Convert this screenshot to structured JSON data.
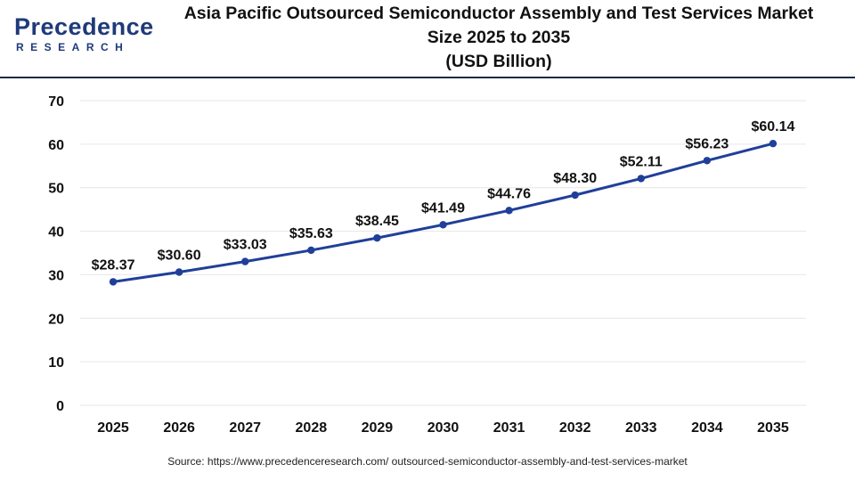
{
  "brand": {
    "logo_word": "Precedence",
    "logo_sub": "RESEARCH"
  },
  "header": {
    "title_line1": "Asia Pacific Outsourced Semiconductor Assembly and Test Services Market",
    "title_line2": "Size 2025 to 2035",
    "title_line3": "(USD Billion)"
  },
  "footer": {
    "source": "Source: https://www.precedenceresearch.com/ outsourced-semiconductor-assembly-and-test-services-market"
  },
  "colors": {
    "line": "#1f3f99",
    "marker": "#1f3f99",
    "grid": "#e6e6e6",
    "text": "#111111",
    "brand": "#1f3a7a"
  },
  "chart_data": {
    "type": "line",
    "title": "Asia Pacific Outsourced Semiconductor Assembly and Test Services Market Size 2025 to 2035 (USD Billion)",
    "xlabel": "",
    "ylabel": "",
    "categories": [
      "2025",
      "2026",
      "2027",
      "2028",
      "2029",
      "2030",
      "2031",
      "2032",
      "2033",
      "2034",
      "2035"
    ],
    "series": [
      {
        "values": [
          28.37,
          30.6,
          33.03,
          35.63,
          38.45,
          41.49,
          44.76,
          48.3,
          52.11,
          56.23,
          60.14
        ],
        "data_labels": [
          "$28.37",
          "$30.60",
          "$33.03",
          "$35.63",
          "$38.45",
          "$41.49",
          "$44.76",
          "$48.30",
          "$52.11",
          "$56.23",
          "$60.14"
        ]
      }
    ],
    "ylim": [
      0,
      70
    ],
    "yticks": [
      0,
      10,
      20,
      30,
      40,
      50,
      60,
      70
    ],
    "grid": true,
    "legend": "none"
  }
}
